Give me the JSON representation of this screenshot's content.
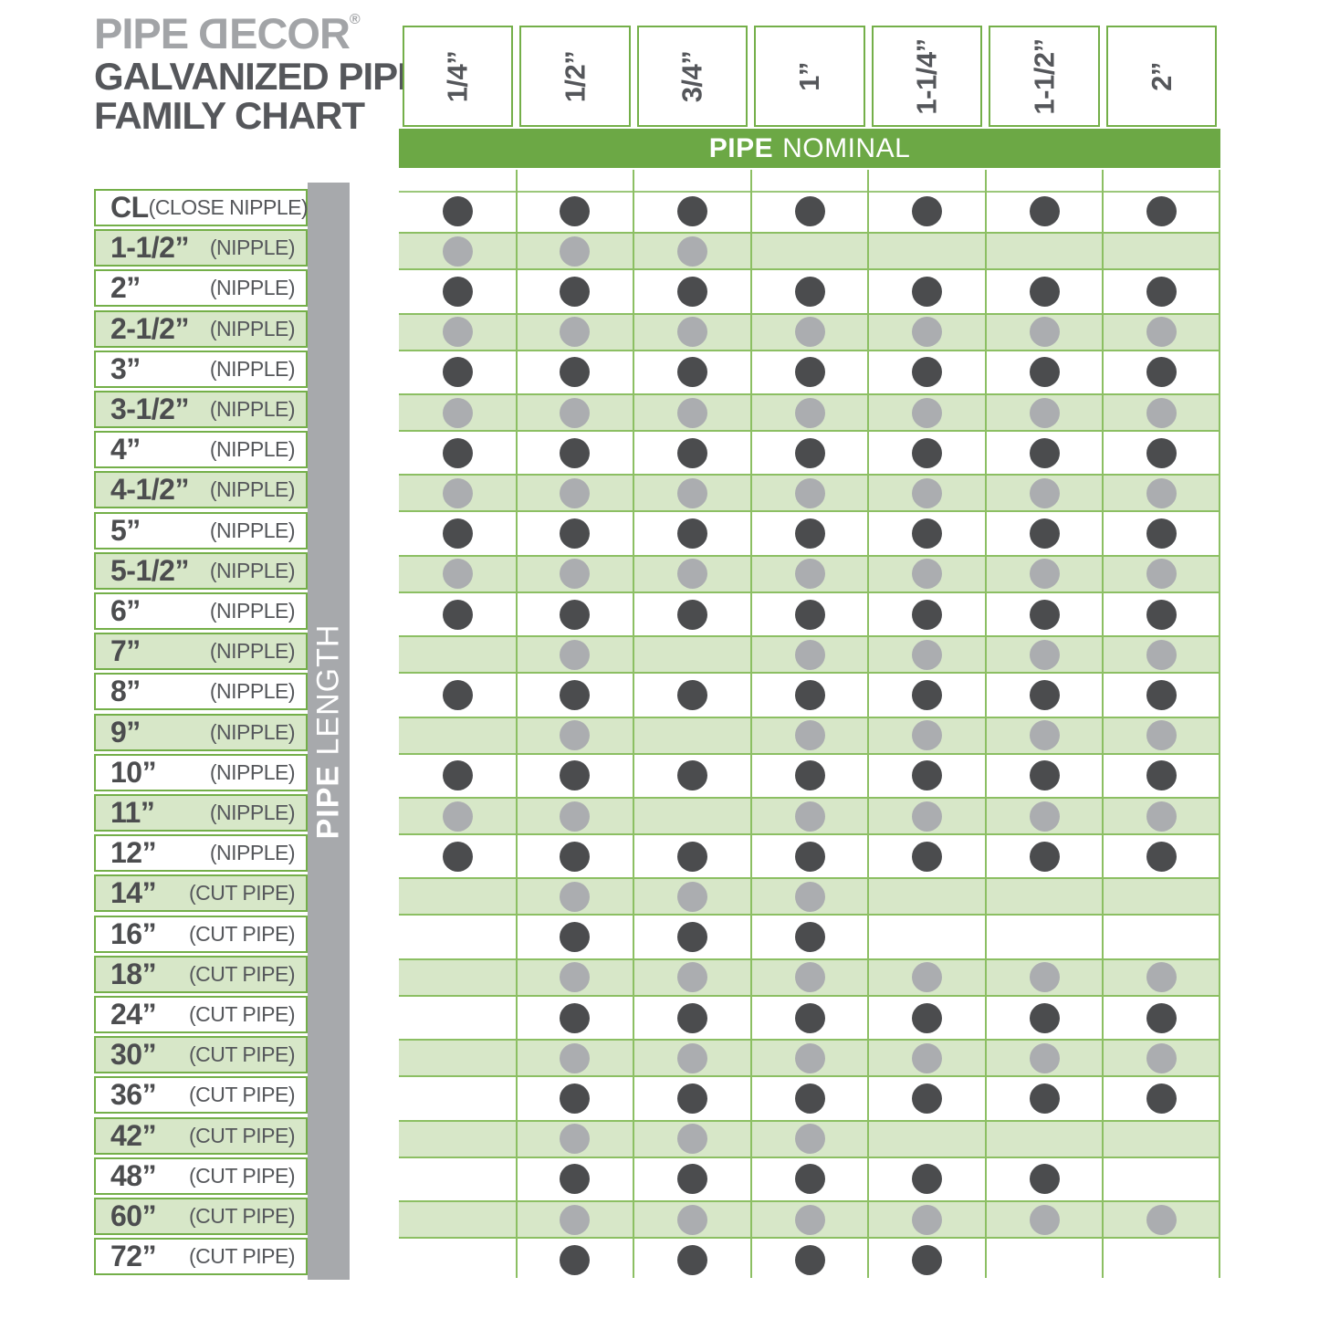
{
  "logo": {
    "brand_prefix": "PIPE ",
    "brand_d": "D",
    "brand_suffix": "ECOR",
    "registered": "®",
    "title_line1": "GALVANIZED PIPE",
    "title_line2": "FAMILY CHART"
  },
  "top_axis": {
    "label_bold": "PIPE",
    "label_rest": "NOMINAL"
  },
  "left_axis": {
    "label_bold": "PIPE ",
    "label_rest": "LENGTH"
  },
  "colors": {
    "banner_green": "#6ca845",
    "box_border_green": "#74af49",
    "band_fill": "#d7e7c8",
    "band_border": "#8cbf63",
    "grid_line": "#8cbf63",
    "hairline": "#9bc77a",
    "bar_gray": "#a7a9ac",
    "dark_text": "#55575b",
    "number_text": "#4c4d4f",
    "logo_gray": "#a2a4a7",
    "dot_dark": "#4b4c4e",
    "dot_light": "#abadb0"
  },
  "chart_data": {
    "type": "table",
    "title": "PIPE DECOR — GALVANIZED PIPE FAMILY CHART",
    "column_axis_label": "PIPE NOMINAL",
    "row_axis_label": "PIPE LENGTH",
    "columns": [
      "1/4”",
      "1/2”",
      "3/4”",
      "1”",
      "1-1/4”",
      "1-1/2”",
      "2”"
    ],
    "rows": [
      {
        "label": "CL",
        "category": "(CLOSE NIPPLE)",
        "available": [
          1,
          1,
          1,
          1,
          1,
          1,
          1
        ]
      },
      {
        "label": "1-1/2”",
        "category": "(NIPPLE)",
        "available": [
          1,
          1,
          1,
          0,
          0,
          0,
          0
        ]
      },
      {
        "label": "2”",
        "category": "(NIPPLE)",
        "available": [
          1,
          1,
          1,
          1,
          1,
          1,
          1
        ]
      },
      {
        "label": "2-1/2”",
        "category": "(NIPPLE)",
        "available": [
          1,
          1,
          1,
          1,
          1,
          1,
          1
        ]
      },
      {
        "label": "3”",
        "category": "(NIPPLE)",
        "available": [
          1,
          1,
          1,
          1,
          1,
          1,
          1
        ]
      },
      {
        "label": "3-1/2”",
        "category": "(NIPPLE)",
        "available": [
          1,
          1,
          1,
          1,
          1,
          1,
          1
        ]
      },
      {
        "label": "4”",
        "category": "(NIPPLE)",
        "available": [
          1,
          1,
          1,
          1,
          1,
          1,
          1
        ]
      },
      {
        "label": "4-1/2”",
        "category": "(NIPPLE)",
        "available": [
          1,
          1,
          1,
          1,
          1,
          1,
          1
        ]
      },
      {
        "label": "5”",
        "category": "(NIPPLE)",
        "available": [
          1,
          1,
          1,
          1,
          1,
          1,
          1
        ]
      },
      {
        "label": "5-1/2”",
        "category": "(NIPPLE)",
        "available": [
          1,
          1,
          1,
          1,
          1,
          1,
          1
        ]
      },
      {
        "label": "6”",
        "category": "(NIPPLE)",
        "available": [
          1,
          1,
          1,
          1,
          1,
          1,
          1
        ]
      },
      {
        "label": "7”",
        "category": "(NIPPLE)",
        "available": [
          0,
          1,
          0,
          1,
          1,
          1,
          1
        ]
      },
      {
        "label": "8”",
        "category": "(NIPPLE)",
        "available": [
          1,
          1,
          1,
          1,
          1,
          1,
          1
        ]
      },
      {
        "label": "9”",
        "category": "(NIPPLE)",
        "available": [
          0,
          1,
          0,
          1,
          1,
          1,
          1
        ]
      },
      {
        "label": "10”",
        "category": "(NIPPLE)",
        "available": [
          1,
          1,
          1,
          1,
          1,
          1,
          1
        ]
      },
      {
        "label": "11”",
        "category": "(NIPPLE)",
        "available": [
          1,
          1,
          0,
          1,
          1,
          1,
          1
        ]
      },
      {
        "label": "12”",
        "category": "(NIPPLE)",
        "available": [
          1,
          1,
          1,
          1,
          1,
          1,
          1
        ]
      },
      {
        "label": "14”",
        "category": "(CUT PIPE)",
        "available": [
          0,
          1,
          1,
          1,
          0,
          0,
          0
        ]
      },
      {
        "label": "16”",
        "category": "(CUT PIPE)",
        "available": [
          0,
          1,
          1,
          1,
          0,
          0,
          0
        ]
      },
      {
        "label": "18”",
        "category": "(CUT PIPE)",
        "available": [
          0,
          1,
          1,
          1,
          1,
          1,
          1
        ]
      },
      {
        "label": "24”",
        "category": "(CUT PIPE)",
        "available": [
          0,
          1,
          1,
          1,
          1,
          1,
          1
        ]
      },
      {
        "label": "30”",
        "category": "(CUT PIPE)",
        "available": [
          0,
          1,
          1,
          1,
          1,
          1,
          1
        ]
      },
      {
        "label": "36”",
        "category": "(CUT PIPE)",
        "available": [
          0,
          1,
          1,
          1,
          1,
          1,
          1
        ]
      },
      {
        "label": "42”",
        "category": "(CUT PIPE)",
        "available": [
          0,
          1,
          1,
          1,
          0,
          0,
          0
        ]
      },
      {
        "label": "48”",
        "category": "(CUT PIPE)",
        "available": [
          0,
          1,
          1,
          1,
          1,
          1,
          0
        ]
      },
      {
        "label": "60”",
        "category": "(CUT PIPE)",
        "available": [
          0,
          1,
          1,
          1,
          1,
          1,
          1
        ]
      },
      {
        "label": "72”",
        "category": "(CUT PIPE)",
        "available": [
          0,
          1,
          1,
          1,
          1,
          0,
          0
        ]
      }
    ]
  }
}
